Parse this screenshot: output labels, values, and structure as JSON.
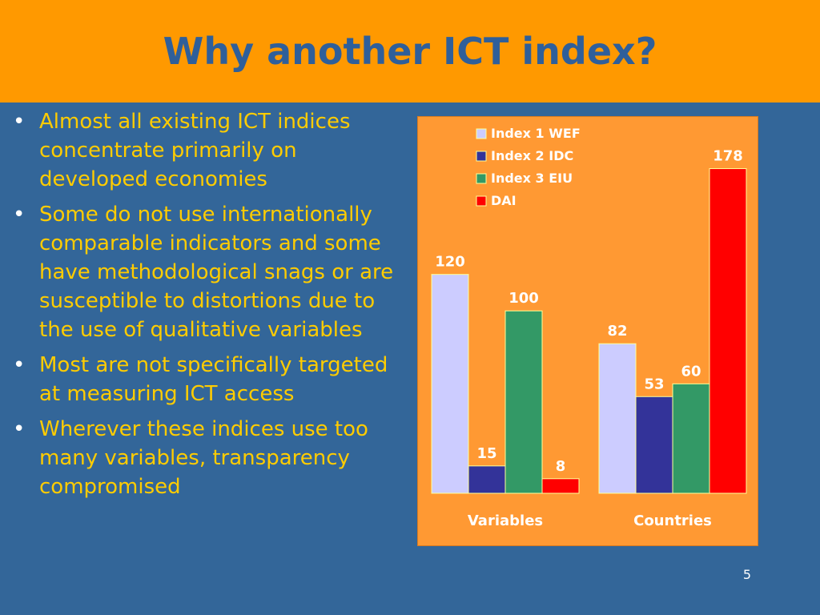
{
  "slide": {
    "title": "Why another ICT index?",
    "number": "5"
  },
  "bullets": [
    "Almost all existing ICT indices concentrate primarily on developed economies",
    "Some do not use internationally comparable indicators and some have methodological snags or are susceptible to distortions due to the use of qualitative variables",
    "Most are not specifically targeted at measuring ICT access",
    "Wherever these indices use too many variables, transparency compromised"
  ],
  "bullet_symbol": "•",
  "colors": {
    "title_bar": "#ff9900",
    "title_text": "#2f5f9a",
    "background": "#336699",
    "bullet_text": "#ffcc00",
    "chart_panel": "#ff9933"
  },
  "chart_data": {
    "type": "bar",
    "categories": [
      "Variables",
      "Countries"
    ],
    "series": [
      {
        "name": "Index 1 WEF",
        "values": [
          120,
          82
        ],
        "color": "#ccccff"
      },
      {
        "name": "Index 2 IDC",
        "values": [
          15,
          53
        ],
        "color": "#333399"
      },
      {
        "name": "Index 3 EIU",
        "values": [
          100,
          60
        ],
        "color": "#339966"
      },
      {
        "name": "DAI",
        "values": [
          8,
          178
        ],
        "color": "#ff0000"
      }
    ],
    "ylim": [
      0,
      180
    ],
    "grid": false,
    "legend_position": "top-left",
    "data_labels": true
  }
}
